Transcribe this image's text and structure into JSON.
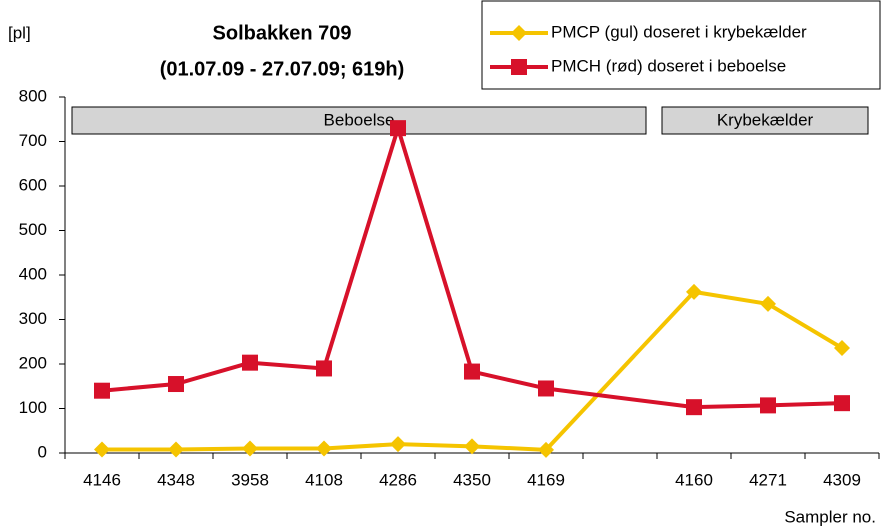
{
  "chart_data": {
    "type": "line",
    "title": "Solbakken 709",
    "subtitle": "(01.07.09 - 27.07.09; 619h)",
    "y_label": "[pl]",
    "x_label": "Sampler no.",
    "annotations": [
      "Beboelse",
      "Krybekælder"
    ],
    "categories": [
      "4146",
      "4348",
      "3958",
      "4108",
      "4286",
      "4350",
      "4169",
      null,
      "4160",
      "4271",
      "4309"
    ],
    "series": [
      {
        "name": "PMCP (gul) doseret i krybekælder",
        "color": "#f5c400",
        "marker": "diamond",
        "values": [
          8,
          8,
          10,
          10,
          20,
          15,
          7,
          null,
          362,
          335,
          236
        ]
      },
      {
        "name": "PMCH (rød) doseret i beboelse",
        "color": "#d7112a",
        "marker": "square",
        "values": [
          140,
          155,
          203,
          190,
          730,
          183,
          145,
          null,
          103,
          107,
          112
        ]
      }
    ],
    "ylim": [
      0,
      800
    ],
    "yticks": [
      0,
      100,
      200,
      300,
      400,
      500,
      600,
      700,
      800
    ],
    "grid": false
  }
}
